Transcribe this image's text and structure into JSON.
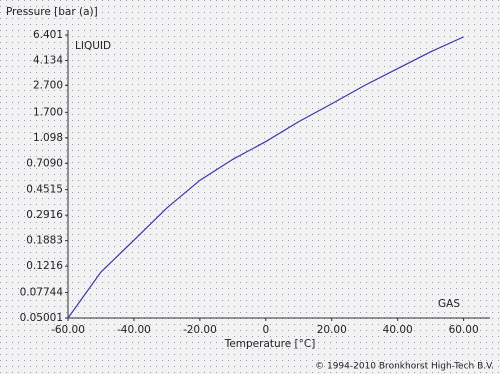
{
  "chart_data": {
    "type": "line",
    "y_label": "Pressure [bar (a)]",
    "x_label": "Temperature [°C]",
    "annotations": [
      "LIQUID",
      "GAS"
    ],
    "footer": "© 1994-2010 Bronkhorst High-Tech B.V.",
    "x": [
      -60,
      -50,
      -40,
      -30,
      -20,
      -10,
      0,
      10,
      20,
      30,
      40,
      50,
      60
    ],
    "series": [
      {
        "color": "#3a3aa8",
        "values": [
          0.05001,
          0.11,
          0.19,
          0.33,
          0.53,
          0.76,
          1.03,
          1.45,
          1.97,
          2.7,
          3.6,
          4.8,
          6.2
        ]
      }
    ],
    "log_y": true,
    "xlim": [
      -60,
      68
    ],
    "ylim": [
      0.05001,
      6.401
    ],
    "xticks": [
      {
        "value": -60,
        "label": "-60.00"
      },
      {
        "value": -40,
        "label": "-40.00"
      },
      {
        "value": -20,
        "label": "-20.00"
      },
      0,
      {
        "value": 20,
        "label": "20.00"
      },
      {
        "value": 40,
        "label": "40.00"
      },
      {
        "value": 60,
        "label": "60.00"
      }
    ],
    "yticks": [
      0.05001,
      0.07744,
      0.1216,
      0.1883,
      0.2916,
      0.4515,
      {
        "value": 0.709,
        "label": "0.7090"
      },
      1.098,
      {
        "value": 1.7,
        "label": "1.700"
      },
      {
        "value": 2.7,
        "label": "2.700"
      },
      4.134,
      6.401
    ]
  }
}
